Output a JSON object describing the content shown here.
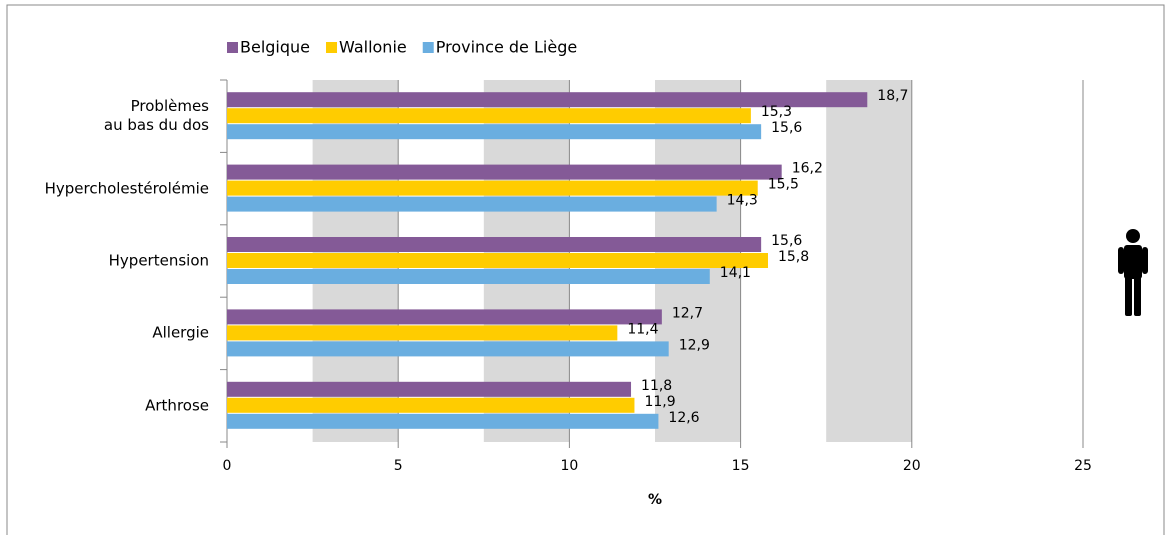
{
  "chart_data": {
    "type": "barh",
    "categories": [
      "Problèmes\nau bas du dos",
      "Hypercholestérolémie",
      "Hypertension",
      "Allergie",
      "Arthrose"
    ],
    "series": [
      {
        "name": "Belgique",
        "color": "#845a97",
        "values": [
          18.7,
          16.2,
          15.6,
          12.7,
          11.8
        ],
        "value_labels": [
          "18,7",
          "16,2",
          "15,6",
          "12,7",
          "11,8"
        ]
      },
      {
        "name": "Wallonie",
        "color": "#ffcc00",
        "values": [
          15.3,
          15.5,
          15.8,
          11.4,
          11.9
        ],
        "value_labels": [
          "15,3",
          "15,5",
          "15,8",
          "11,4",
          "11,9"
        ]
      },
      {
        "name": "Province de Liège",
        "color": "#6aaee0",
        "values": [
          15.6,
          14.3,
          14.1,
          12.9,
          12.6
        ],
        "value_labels": [
          "15,6",
          "14,3",
          "14,1",
          "12,9",
          "12,6"
        ]
      }
    ],
    "xlabel": "%",
    "xlim": [
      0,
      25
    ],
    "xticks": [
      0,
      5,
      10,
      15,
      20,
      25
    ],
    "legend": "top-left"
  }
}
